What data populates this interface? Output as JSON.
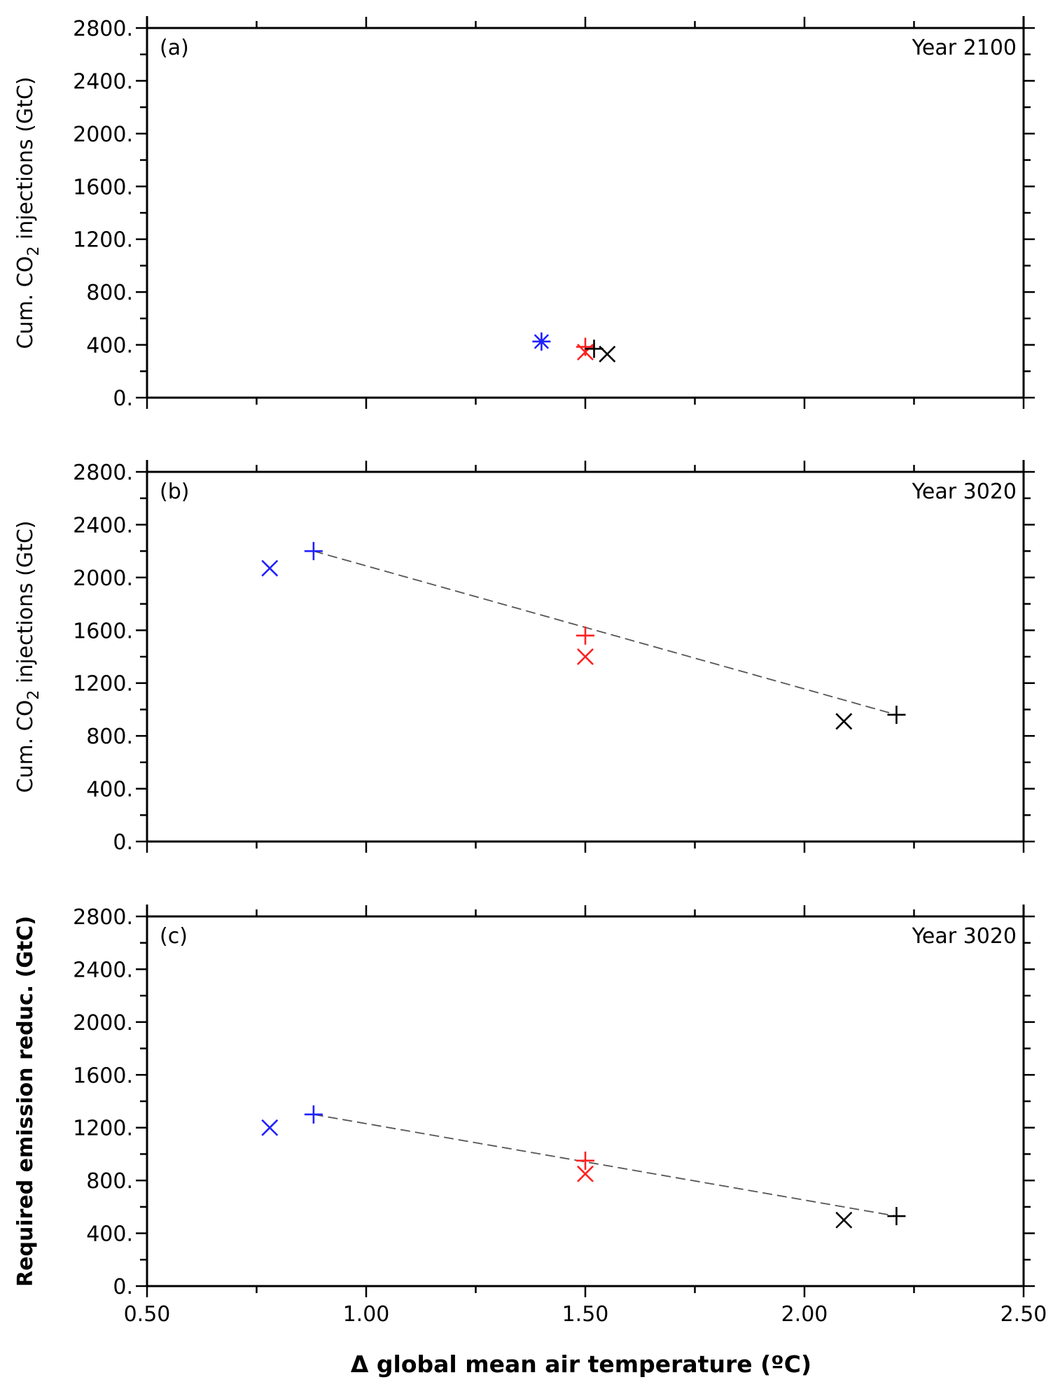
{
  "colors": {
    "blue": "#2020ff",
    "red": "#ff2020",
    "black": "#000000",
    "frame": "#000000",
    "fit_line": "#555555"
  },
  "xlabel": "Δ global mean air temperature (ºC)",
  "x_tick_labels": [
    "0.50",
    "1.00",
    "1.50",
    "2.00",
    "2.50"
  ],
  "y_tick_labels": [
    "0.",
    "400.",
    "800.",
    "1200.",
    "1600.",
    "2000.",
    "2400.",
    "2800."
  ],
  "chart_data": [
    {
      "type": "scatter",
      "panel_label": "(a)",
      "year_label": "Year 2100",
      "ylabel_prefix": "Cum. CO",
      "ylabel_sub": "2",
      "ylabel_suffix": " injections (GtC)",
      "xlim": [
        0.5,
        2.5
      ],
      "ylim": [
        0,
        2800
      ],
      "x_ticks": [
        0.5,
        1.0,
        1.5,
        2.0,
        2.5
      ],
      "y_ticks": [
        0,
        400,
        800,
        1200,
        1600,
        2000,
        2400,
        2800
      ],
      "points": [
        {
          "x": 1.4,
          "y": 425,
          "marker": "asterisk",
          "color": "blue"
        },
        {
          "x": 1.5,
          "y": 385,
          "marker": "plus",
          "color": "red"
        },
        {
          "x": 1.5,
          "y": 345,
          "marker": "cross",
          "color": "red"
        },
        {
          "x": 1.52,
          "y": 370,
          "marker": "plus",
          "color": "black"
        },
        {
          "x": 1.55,
          "y": 330,
          "marker": "cross",
          "color": "black"
        }
      ],
      "fit_line": null
    },
    {
      "type": "scatter",
      "panel_label": "(b)",
      "year_label": "Year 3020",
      "ylabel_prefix": "Cum. CO",
      "ylabel_sub": "2",
      "ylabel_suffix": " injections (GtC)",
      "xlim": [
        0.5,
        2.5
      ],
      "ylim": [
        0,
        2800
      ],
      "x_ticks": [
        0.5,
        1.0,
        1.5,
        2.0,
        2.5
      ],
      "y_ticks": [
        0,
        400,
        800,
        1200,
        1600,
        2000,
        2400,
        2800
      ],
      "points": [
        {
          "x": 0.78,
          "y": 2070,
          "marker": "cross",
          "color": "blue"
        },
        {
          "x": 0.88,
          "y": 2200,
          "marker": "plus",
          "color": "blue"
        },
        {
          "x": 1.5,
          "y": 1560,
          "marker": "plus",
          "color": "red"
        },
        {
          "x": 1.5,
          "y": 1400,
          "marker": "cross",
          "color": "red"
        },
        {
          "x": 2.09,
          "y": 910,
          "marker": "cross",
          "color": "black"
        },
        {
          "x": 2.21,
          "y": 960,
          "marker": "plus",
          "color": "black"
        }
      ],
      "fit_line": {
        "x": [
          0.88,
          2.21
        ],
        "y": [
          2200,
          960
        ]
      }
    },
    {
      "type": "scatter",
      "panel_label": "(c)",
      "year_label": "Year 3020",
      "ylabel_prefix": "Required emission reduc. (GtC)",
      "ylabel_sub": "",
      "ylabel_suffix": "",
      "xlim": [
        0.5,
        2.5
      ],
      "ylim": [
        0,
        2800
      ],
      "x_ticks": [
        0.5,
        1.0,
        1.5,
        2.0,
        2.5
      ],
      "y_ticks": [
        0,
        400,
        800,
        1200,
        1600,
        2000,
        2400,
        2800
      ],
      "points": [
        {
          "x": 0.78,
          "y": 1200,
          "marker": "cross",
          "color": "blue"
        },
        {
          "x": 0.88,
          "y": 1300,
          "marker": "plus",
          "color": "blue"
        },
        {
          "x": 1.5,
          "y": 950,
          "marker": "plus",
          "color": "red"
        },
        {
          "x": 1.5,
          "y": 850,
          "marker": "cross",
          "color": "red"
        },
        {
          "x": 2.09,
          "y": 500,
          "marker": "cross",
          "color": "black"
        },
        {
          "x": 2.21,
          "y": 530,
          "marker": "plus",
          "color": "black"
        }
      ],
      "fit_line": {
        "x": [
          0.88,
          2.21
        ],
        "y": [
          1300,
          530
        ]
      }
    }
  ]
}
